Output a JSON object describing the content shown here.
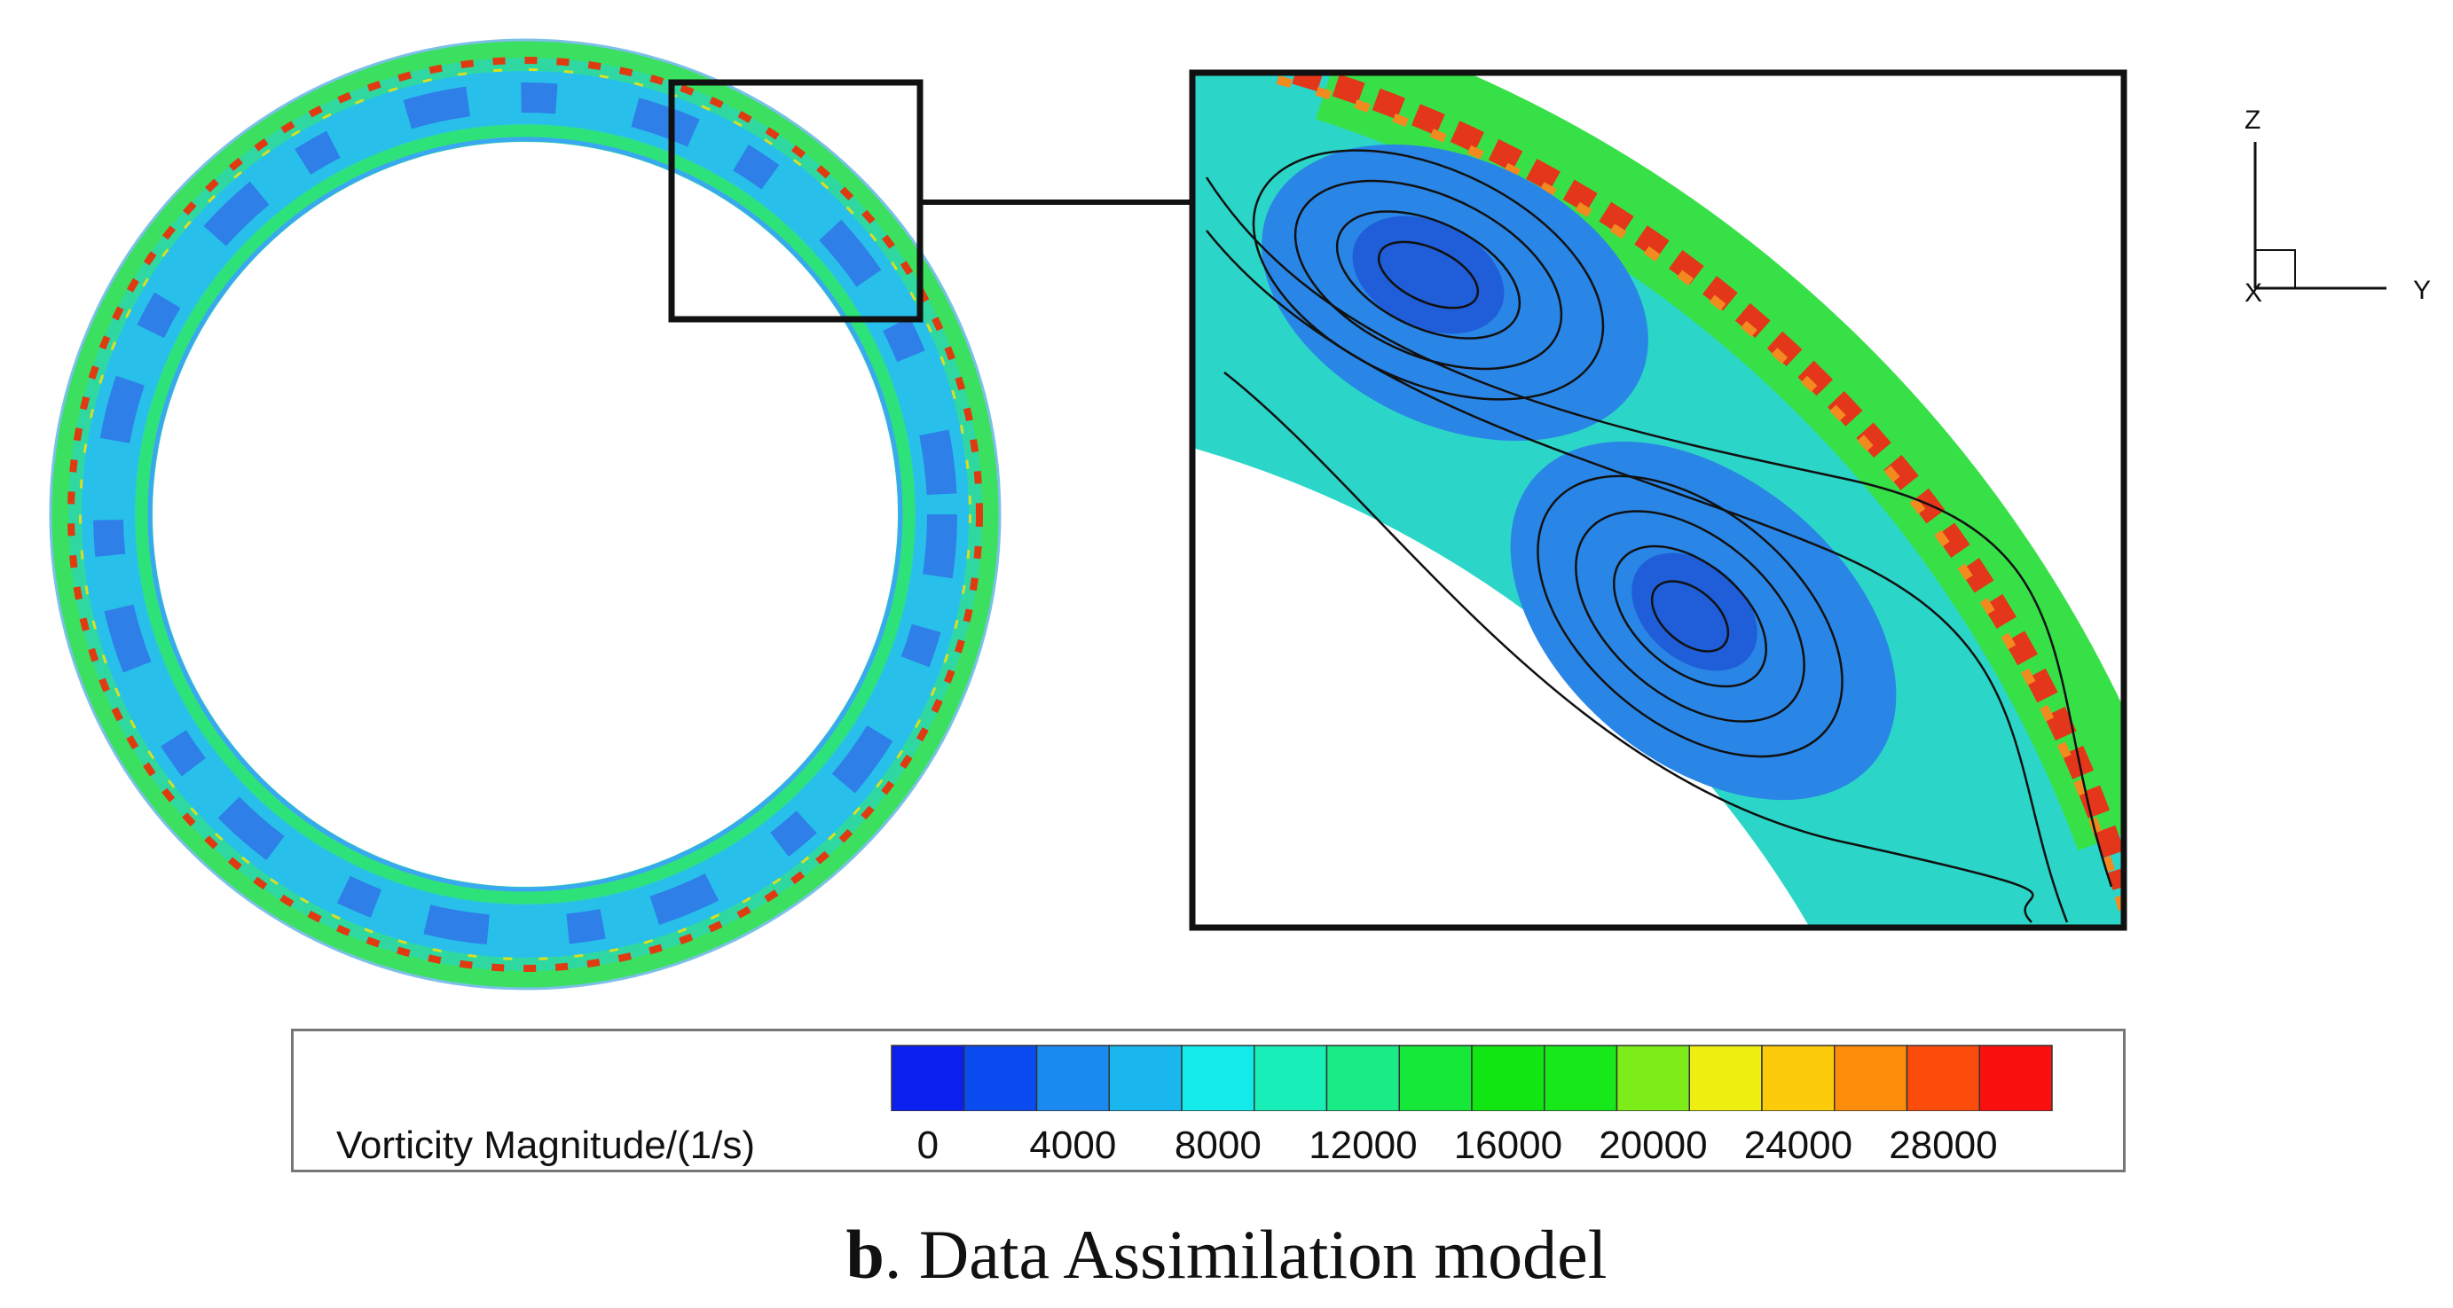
{
  "axes_triad": {
    "z_label": "Z",
    "y_label": "Y",
    "x_label": "X"
  },
  "legend": {
    "title": "Vorticity Magnitude/(1/s)",
    "colors": [
      "#0b1ff0",
      "#0b4cf0",
      "#1a8af0",
      "#19b7ee",
      "#15eaea",
      "#18eeb8",
      "#19ec86",
      "#15e838",
      "#12e612",
      "#16e81a",
      "#7ded1a",
      "#eeee10",
      "#fccb0a",
      "#fc8c0a",
      "#fb4c0c",
      "#fb1010"
    ],
    "ticks": [
      "0",
      "4000",
      "8000",
      "12000",
      "16000",
      "20000",
      "24000",
      "28000"
    ]
  },
  "caption": {
    "letter": "b",
    "text": ". Data Assimilation model"
  }
}
